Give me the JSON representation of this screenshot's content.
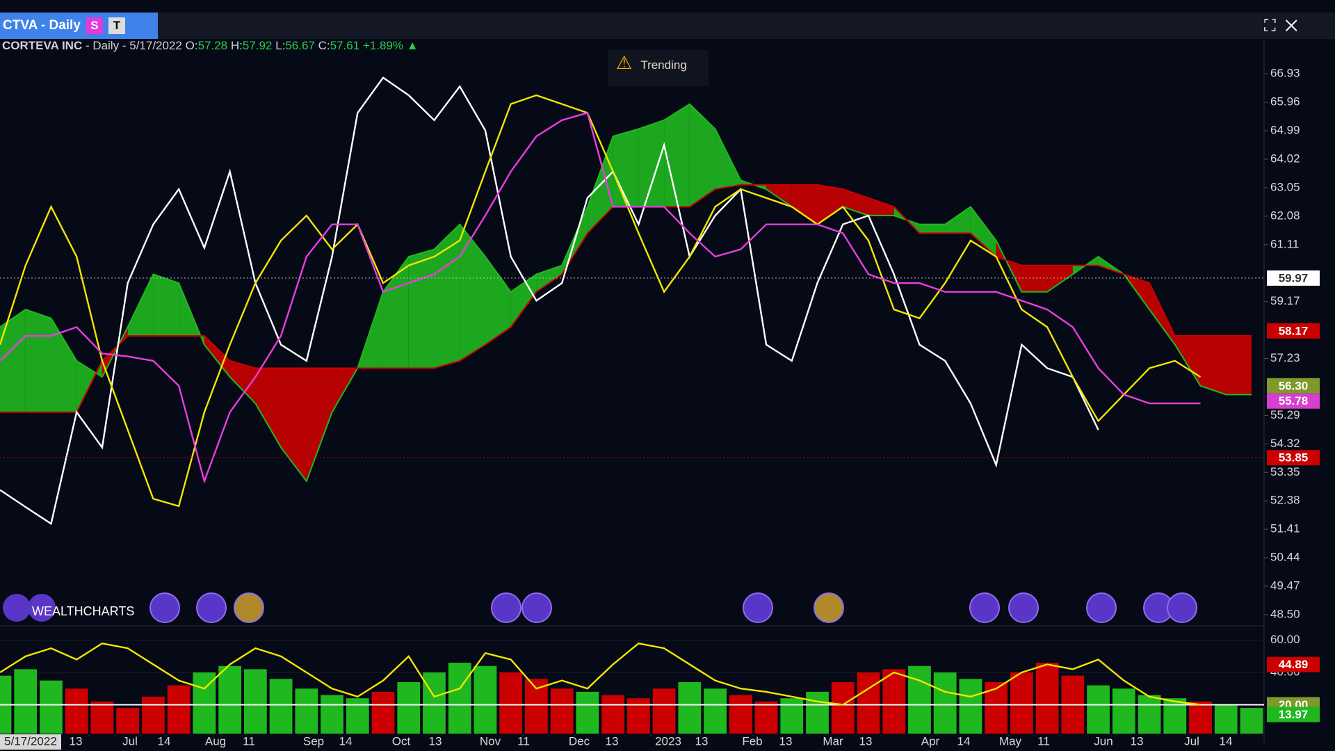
{
  "header": {
    "tab": "CTVA - Daily",
    "badge_s": "S",
    "badge_t": "T",
    "company": "CORTEVA INC",
    "period": "- Daily - 5/17/2022",
    "open_label": "O:",
    "open": "57.28",
    "high_label": "H:",
    "high": "57.92",
    "low_label": "L:",
    "low": "56.67",
    "close_label": "C:",
    "close": "57.61",
    "change": "+1.89%",
    "alert": "Trending",
    "brand": "WEALTHCHARTS"
  },
  "chart_data": {
    "type": "line",
    "ylim": [
      48.12,
      67.55
    ],
    "yticks": [
      66.93,
      65.96,
      64.99,
      64.02,
      63.05,
      62.08,
      61.11,
      59.17,
      57.23,
      55.29,
      54.32,
      53.35,
      52.38,
      51.41,
      50.44,
      49.47,
      {
        "value": 48.5,
        "label": "48.50"
      }
    ],
    "x_labels": [
      "5/17/2022",
      "13",
      "Jul",
      "14",
      "Aug",
      "11",
      "Sep",
      "14",
      "Oct",
      "13",
      "Nov",
      "11",
      "Dec",
      "13",
      "2023",
      "13",
      "Feb",
      "13",
      "Mar",
      "13",
      "Apr",
      "14",
      "May",
      "11",
      "Jun",
      "13",
      "Jul",
      "14"
    ],
    "series": [
      {
        "color": "#ffffff",
        "values": [
          52.75,
          52.17,
          51.6,
          55.4,
          54.2,
          59.8,
          61.8,
          63.0,
          61.0,
          63.6,
          59.8,
          57.7,
          57.15,
          60.7,
          65.6,
          66.8,
          66.2,
          65.35,
          66.5,
          65.0,
          60.7,
          59.2,
          59.8,
          62.7,
          63.6,
          61.8,
          64.5,
          60.7,
          62.1,
          63.0,
          57.7,
          57.15,
          59.8,
          61.8,
          62.1,
          60.1,
          57.7,
          57.15,
          55.7,
          53.6,
          57.7,
          56.9,
          56.6,
          54.8,
          null,
          null,
          null,
          null,
          null,
          null
        ]
      },
      {
        "color": "#f2e600",
        "values": [
          57.7,
          60.4,
          62.4,
          60.7,
          57.15,
          54.8,
          52.45,
          52.2,
          55.4,
          57.7,
          59.8,
          61.25,
          62.1,
          60.95,
          61.8,
          59.8,
          60.4,
          60.7,
          61.25,
          63.6,
          65.9,
          66.2,
          65.9,
          65.6,
          63.6,
          61.5,
          59.5,
          60.7,
          62.4,
          63.0,
          62.7,
          62.4,
          61.8,
          62.4,
          61.25,
          58.9,
          58.6,
          59.8,
          61.25,
          60.7,
          58.9,
          58.3,
          56.6,
          55.1,
          56.0,
          56.9,
          57.15,
          56.6,
          null,
          null
        ]
      },
      {
        "color": "#e83ee0",
        "values": [
          57.15,
          58.0,
          58.0,
          58.3,
          57.4,
          57.3,
          57.15,
          56.3,
          53.05,
          55.4,
          56.6,
          58.0,
          60.7,
          61.8,
          61.8,
          59.5,
          59.8,
          60.1,
          60.7,
          62.1,
          63.6,
          64.8,
          65.35,
          65.6,
          62.4,
          62.4,
          62.4,
          61.5,
          60.7,
          60.95,
          61.8,
          61.8,
          61.8,
          61.5,
          60.1,
          59.8,
          59.8,
          59.5,
          59.5,
          59.5,
          59.2,
          58.9,
          58.3,
          56.9,
          56.0,
          55.7,
          55.7,
          55.7,
          null,
          null
        ]
      }
    ],
    "cloud": {
      "up_color": "#1fb81f",
      "down_color": "#cc0000",
      "span_a": [
        58.3,
        58.9,
        58.6,
        57.15,
        56.6,
        58.3,
        60.1,
        59.8,
        57.7,
        56.6,
        55.7,
        54.2,
        53.05,
        55.4,
        56.9,
        59.5,
        60.7,
        60.95,
        61.8,
        60.7,
        59.5,
        60.1,
        60.4,
        62.4,
        64.8,
        65.05,
        65.35,
        65.9,
        65.05,
        63.3,
        63.0,
        62.4,
        61.8,
        62.4,
        62.1,
        62.1,
        61.8,
        61.8,
        62.4,
        61.25,
        59.5,
        59.5,
        60.1,
        60.7,
        60.1,
        58.9,
        57.7,
        56.3,
        56.0,
        56.0
      ],
      "span_b": [
        55.4,
        55.4,
        55.4,
        55.4,
        57.15,
        58.0,
        58.0,
        58.0,
        58.0,
        57.15,
        56.9,
        56.9,
        56.9,
        56.9,
        56.9,
        56.9,
        56.9,
        56.9,
        57.15,
        57.7,
        58.3,
        59.5,
        60.1,
        61.5,
        62.4,
        62.4,
        62.4,
        62.4,
        63.0,
        63.15,
        63.15,
        63.15,
        63.15,
        63.0,
        62.7,
        62.4,
        61.5,
        61.5,
        61.5,
        60.7,
        60.4,
        60.4,
        60.4,
        60.4,
        60.1,
        59.8,
        58.0,
        58.0,
        58.0,
        58.0
      ]
    },
    "price_labels": [
      {
        "value": 59.97,
        "label": "59.97",
        "color": "#ffffff",
        "text_color": "#333333",
        "line": "dotted-white"
      },
      {
        "value": 58.17,
        "label": "58.17",
        "color": "#cc0000",
        "text_color": "#ffffff"
      },
      {
        "value": 56.3,
        "label": "56.30",
        "color": "#7f9a2a",
        "text_color": "#ffffff"
      },
      {
        "value": 55.78,
        "label": "55.78",
        "color": "#d63fcf",
        "text_color": "#ffffff"
      },
      {
        "value": 53.85,
        "label": "53.85",
        "color": "#cc0000",
        "text_color": "#ffffff",
        "line": "dotted-red"
      }
    ],
    "lower": {
      "ylim": [
        2.1,
        66.3
      ],
      "yticks": [
        {
          "value": 60,
          "label": "60.00"
        },
        {
          "value": 40,
          "label": "40.00"
        }
      ],
      "histogram": [
        38,
        42,
        35,
        30,
        22,
        18,
        25,
        32,
        40,
        44,
        42,
        36,
        30,
        26,
        24,
        28,
        34,
        40,
        46,
        44,
        40,
        36,
        30,
        28,
        26,
        24,
        30,
        34,
        30,
        26,
        22,
        24,
        28,
        34,
        40,
        42,
        44,
        40,
        36,
        34,
        40,
        46,
        38,
        32,
        30,
        26,
        24,
        22,
        20,
        18
      ],
      "histogram_colors": [
        "#1fb81f",
        "#1fb81f",
        "#1fb81f",
        "#cc0000",
        "#cc0000",
        "#cc0000",
        "#cc0000",
        "#cc0000",
        "#1fb81f",
        "#1fb81f",
        "#1fb81f",
        "#1fb81f",
        "#1fb81f",
        "#1fb81f",
        "#1fb81f",
        "#cc0000",
        "#1fb81f",
        "#1fb81f",
        "#1fb81f",
        "#1fb81f",
        "#cc0000",
        "#cc0000",
        "#cc0000",
        "#1fb81f",
        "#cc0000",
        "#cc0000",
        "#cc0000",
        "#1fb81f",
        "#1fb81f",
        "#cc0000",
        "#cc0000",
        "#1fb81f",
        "#1fb81f",
        "#cc0000",
        "#cc0000",
        "#cc0000",
        "#1fb81f",
        "#1fb81f",
        "#1fb81f",
        "#cc0000",
        "#cc0000",
        "#cc0000",
        "#cc0000",
        "#1fb81f",
        "#1fb81f",
        "#1fb81f",
        "#1fb81f",
        "#cc0000",
        "#1fb81f",
        "#1fb81f"
      ],
      "line_color": "#f2e600",
      "line": [
        40,
        50,
        55,
        48,
        58,
        55,
        45,
        35,
        30,
        45,
        55,
        50,
        40,
        30,
        25,
        35,
        50,
        25,
        30,
        52,
        48,
        30,
        35,
        30,
        45,
        58,
        55,
        45,
        35,
        30,
        28,
        25,
        22,
        20,
        30,
        40,
        35,
        28,
        25,
        30,
        40,
        45,
        42,
        48,
        35,
        25,
        22,
        20,
        null,
        null
      ],
      "level": {
        "value": 20,
        "label": "20.00",
        "color": "#7f9a2a"
      },
      "price_labels": [
        {
          "value": 44.89,
          "label": "44.89",
          "color": "#cc0000"
        },
        {
          "value": 13.97,
          "label": "13.97",
          "color": "#1fb81f"
        }
      ]
    }
  }
}
